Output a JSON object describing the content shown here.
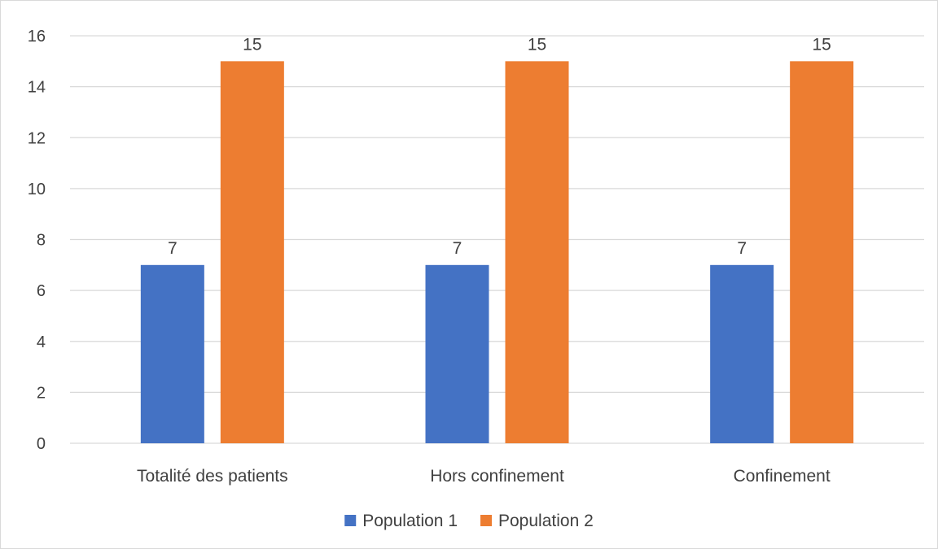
{
  "chart_data": {
    "type": "bar",
    "title": "",
    "xlabel": "",
    "ylabel": "",
    "categories": [
      "Totalité des patients",
      "Hors confinement",
      "Confinement"
    ],
    "series": [
      {
        "name": "Population 1",
        "values": [
          7,
          7,
          7
        ],
        "color": "#4472C4"
      },
      {
        "name": "Population 2",
        "values": [
          15,
          15,
          15
        ],
        "color": "#ED7D31"
      }
    ],
    "ylim": [
      0,
      16
    ],
    "yticks": [
      0,
      2,
      4,
      6,
      8,
      10,
      12,
      14,
      16
    ],
    "grid": true,
    "data_labels": true,
    "legend_position": "bottom"
  },
  "colors": {
    "gridline": "#D9D9D9",
    "frame": "#D9D9D9",
    "text": "#404040"
  }
}
